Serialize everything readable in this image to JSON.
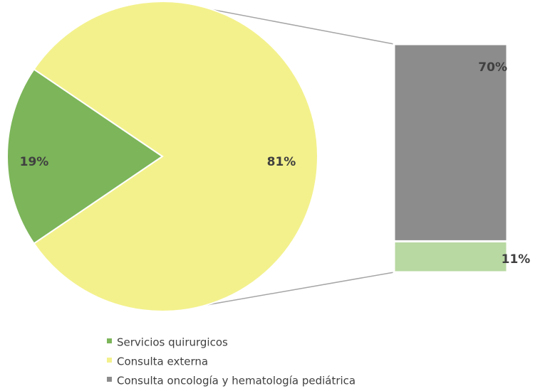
{
  "chart_data": {
    "type": "pie_of_bar",
    "categories": [
      "Servicios quirurgicos",
      "Consulta externa"
    ],
    "values": [
      19,
      81
    ],
    "value_labels": [
      "19%",
      "81%"
    ],
    "colors": [
      "#7cb55a",
      "#f3f18c"
    ],
    "breakdown": {
      "categories": [
        "Consulta oncología y hematología pediátrica",
        null
      ],
      "values": [
        70,
        11
      ],
      "value_labels": [
        "70%",
        "11%"
      ],
      "colors": [
        "#8c8c8c",
        "#b8d9a2"
      ]
    }
  }
}
